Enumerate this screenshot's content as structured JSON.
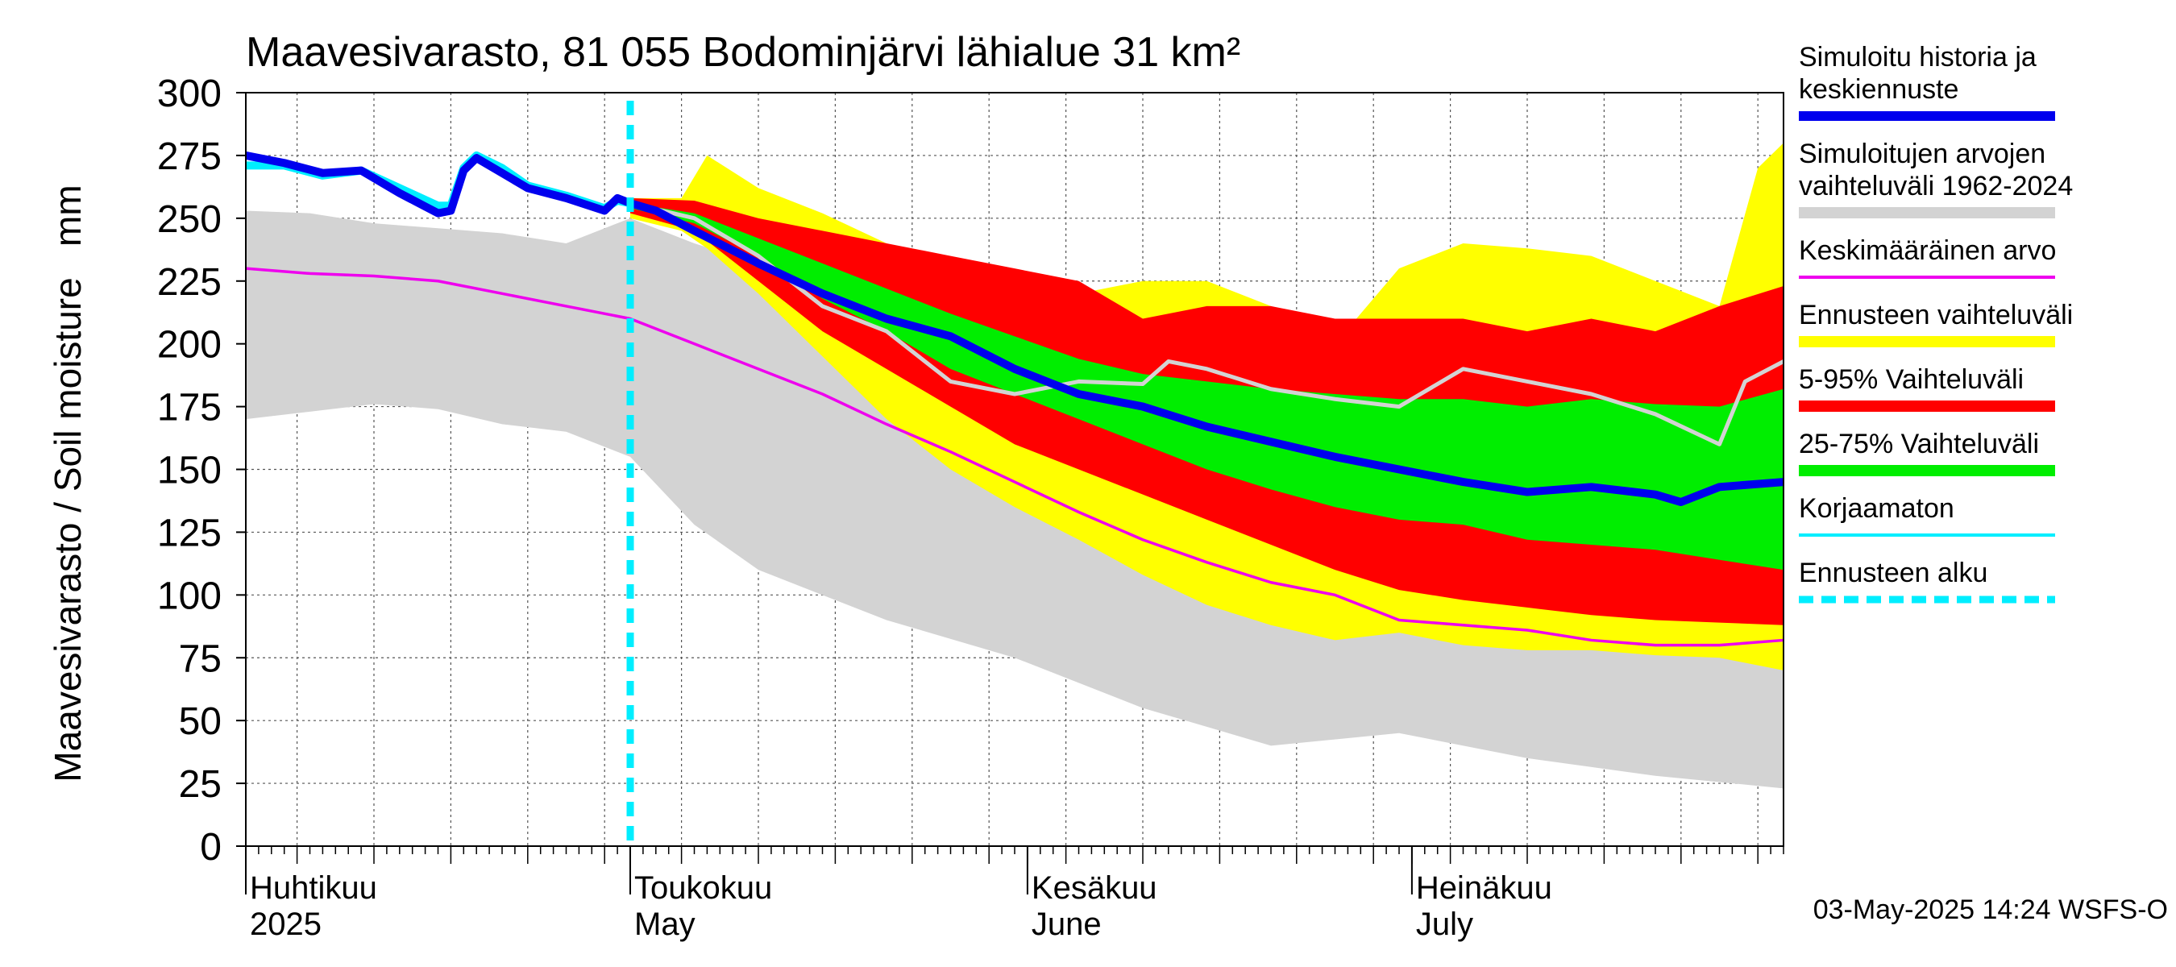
{
  "chart_data": {
    "type": "area",
    "title": "Maavesivarasto, 81 055 Bodominjärvi lähialue 31 km²",
    "ylabel": "Maavesivarasto / Soil moisture   mm",
    "ylim": [
      0,
      300
    ],
    "yticks": [
      0,
      25,
      50,
      75,
      100,
      125,
      150,
      175,
      200,
      225,
      250,
      275,
      300
    ],
    "x_day_range": [
      0,
      120
    ],
    "month_labels": [
      {
        "day": 0,
        "fi": "Huhtikuu",
        "en": "2025"
      },
      {
        "day": 30,
        "fi": "Toukokuu",
        "en": "May"
      },
      {
        "day": 61,
        "fi": "Kesäkuu",
        "en": "June"
      },
      {
        "day": 91,
        "fi": "Heinäkuu",
        "en": "July"
      }
    ],
    "forecast_start_day": 30,
    "timestamp": "03-May-2025 14:24 WSFS-O",
    "colors": {
      "history": "#0000ee",
      "sim_range": "#d3d3d3",
      "mean": "#ee00ee",
      "forecast_range": "#ffff00",
      "p5_95": "#ff0000",
      "p25_75": "#00ee00",
      "uncorrected": "#00eeff",
      "forecast_start": "#00eeff"
    },
    "legend": [
      {
        "label": "Simuloitu historia ja keskiennuste",
        "lines": [
          "Simuloitu historia ja",
          "keskiennuste"
        ],
        "kind": "line-thick",
        "color": "#0000ee"
      },
      {
        "label": "Simuloitujen arvojen vaihteluväli 1962-2024",
        "lines": [
          "Simuloitujen arvojen",
          "vaihteluväli 1962-2024"
        ],
        "kind": "band",
        "color": "#d3d3d3"
      },
      {
        "label": "Keskimääräinen arvo",
        "lines": [
          "Keskimääräinen arvo"
        ],
        "kind": "line",
        "color": "#ee00ee"
      },
      {
        "label": "Ennusteen vaihteluväli",
        "lines": [
          "Ennusteen vaihteluväli"
        ],
        "kind": "band",
        "color": "#ffff00"
      },
      {
        "label": "5-95% Vaihteluväli",
        "lines": [
          "5-95% Vaihteluväli"
        ],
        "kind": "band",
        "color": "#ff0000"
      },
      {
        "label": "25-75% Vaihteluväli",
        "lines": [
          "25-75% Vaihteluväli"
        ],
        "kind": "band",
        "color": "#00ee00"
      },
      {
        "label": "Korjaamaton",
        "lines": [
          "Korjaamaton"
        ],
        "kind": "line",
        "color": "#00eeff"
      },
      {
        "label": "Ennusteen alku",
        "lines": [
          "Ennusteen alku"
        ],
        "kind": "dashed",
        "color": "#00eeff"
      }
    ],
    "series": {
      "sim_range": {
        "x": [
          0,
          5,
          10,
          15,
          20,
          25,
          30,
          35,
          40,
          50,
          60,
          70,
          80,
          90,
          100,
          110,
          120
        ],
        "upper": [
          253,
          252,
          248,
          246,
          244,
          240,
          250,
          240,
          232,
          215,
          190,
          175,
          160,
          145,
          130,
          120,
          115
        ],
        "lower": [
          170,
          173,
          176,
          174,
          168,
          165,
          155,
          128,
          110,
          90,
          75,
          55,
          40,
          45,
          35,
          28,
          23
        ]
      },
      "forecast_range": {
        "x": [
          30,
          34,
          36,
          40,
          45,
          50,
          55,
          60,
          65,
          70,
          75,
          80,
          85,
          90,
          95,
          100,
          105,
          110,
          115,
          118,
          120
        ],
        "upper": [
          258,
          258,
          275,
          262,
          252,
          240,
          230,
          225,
          220,
          225,
          225,
          215,
          200,
          230,
          240,
          238,
          235,
          225,
          215,
          270,
          280
        ],
        "lower": [
          250,
          245,
          238,
          220,
          195,
          170,
          150,
          135,
          122,
          108,
          96,
          88,
          82,
          85,
          80,
          78,
          78,
          76,
          75,
          72,
          70
        ]
      },
      "p5_95": {
        "x": [
          30,
          35,
          40,
          45,
          50,
          55,
          60,
          65,
          70,
          75,
          80,
          85,
          90,
          95,
          100,
          105,
          110,
          115,
          120
        ],
        "upper": [
          258,
          257,
          250,
          245,
          240,
          235,
          230,
          225,
          210,
          215,
          215,
          210,
          210,
          210,
          205,
          210,
          205,
          215,
          223
        ],
        "lower": [
          252,
          245,
          225,
          205,
          190,
          175,
          160,
          150,
          140,
          130,
          120,
          110,
          102,
          98,
          95,
          92,
          90,
          89,
          88
        ]
      },
      "p25_75": {
        "x": [
          30,
          35,
          40,
          45,
          50,
          55,
          60,
          65,
          70,
          75,
          80,
          85,
          90,
          95,
          100,
          105,
          110,
          115,
          120
        ],
        "upper": [
          256,
          252,
          242,
          232,
          222,
          212,
          203,
          194,
          188,
          185,
          182,
          180,
          178,
          178,
          175,
          178,
          176,
          175,
          182
        ],
        "lower": [
          254,
          248,
          235,
          218,
          205,
          190,
          180,
          170,
          160,
          150,
          142,
          135,
          130,
          128,
          122,
          120,
          118,
          114,
          110
        ]
      },
      "mean": {
        "x": [
          0,
          5,
          10,
          15,
          20,
          25,
          30,
          35,
          40,
          45,
          50,
          55,
          60,
          65,
          70,
          75,
          80,
          85,
          90,
          95,
          100,
          105,
          110,
          115,
          120
        ],
        "y": [
          230,
          228,
          227,
          225,
          220,
          215,
          210,
          200,
          190,
          180,
          168,
          157,
          145,
          133,
          122,
          113,
          105,
          100,
          90,
          88,
          86,
          82,
          80,
          80,
          82
        ]
      },
      "median": {
        "x": [
          30,
          35,
          40,
          45,
          50,
          55,
          60,
          65,
          70,
          72,
          75,
          80,
          85,
          90,
          95,
          100,
          105,
          110,
          115,
          117,
          120
        ],
        "y": [
          256,
          250,
          235,
          215,
          205,
          185,
          180,
          185,
          184,
          193,
          190,
          182,
          178,
          175,
          190,
          185,
          180,
          172,
          160,
          185,
          193
        ]
      },
      "history": {
        "x": [
          0,
          3,
          6,
          9,
          12,
          15,
          16,
          17,
          18,
          20,
          22,
          25,
          28,
          29,
          30,
          32,
          35,
          40,
          45,
          50,
          55,
          60,
          65,
          70,
          75,
          80,
          85,
          90,
          95,
          100,
          105,
          110,
          112,
          115,
          120
        ],
        "y": [
          275,
          272,
          268,
          269,
          260,
          252,
          253,
          269,
          274,
          268,
          262,
          258,
          253,
          258,
          256,
          253,
          245,
          232,
          220,
          210,
          203,
          190,
          180,
          175,
          167,
          161,
          155,
          150,
          145,
          141,
          143,
          140,
          137,
          143,
          145
        ]
      },
      "uncorrected": {
        "x": [
          0,
          3,
          6,
          9,
          12,
          15,
          16,
          17,
          18,
          20,
          22,
          25,
          28,
          29,
          30
        ],
        "y": [
          271,
          271,
          267,
          269,
          262,
          255,
          255,
          270,
          275,
          270,
          263,
          259,
          254,
          257,
          256
        ]
      }
    }
  }
}
